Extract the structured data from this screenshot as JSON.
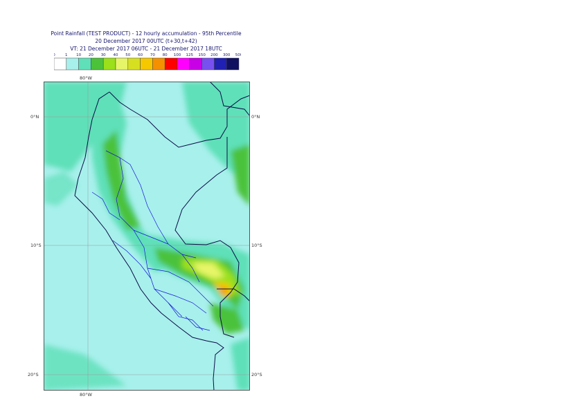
{
  "header": {
    "title_line1": "Point Rainfall (TEST PRODUCT) - 12 hourly accumulation - 95th Percentile",
    "title_line2": "20 December 2017 00UTC (t+30,t+42)",
    "title_line3": "VT: 21 December 2017 06UTC - 21 December 2017 18UTC"
  },
  "legend": {
    "thresholds": [
      "0",
      "1",
      "10",
      "20",
      "30",
      "40",
      "50",
      "60",
      "70",
      "80",
      "100",
      "125",
      "150",
      "200",
      "300",
      "500"
    ],
    "colors": [
      "#ffffff",
      "#a8f0ec",
      "#5fe0b8",
      "#4cc23a",
      "#9be01a",
      "#e6f568",
      "#d6e020",
      "#f5c800",
      "#f59000",
      "#ff0000",
      "#ff00ff",
      "#c800e6",
      "#7850f0",
      "#2020b4",
      "#101060"
    ]
  },
  "map": {
    "lon_top_label": "80°W",
    "lon_bottom_label": "80°W",
    "lat_labels": [
      "0°N",
      "10°S",
      "20°S"
    ],
    "colors": {
      "land_border": "#0a0a46",
      "region_border": "#1414dc",
      "ocean": "#a8f0ec"
    }
  }
}
